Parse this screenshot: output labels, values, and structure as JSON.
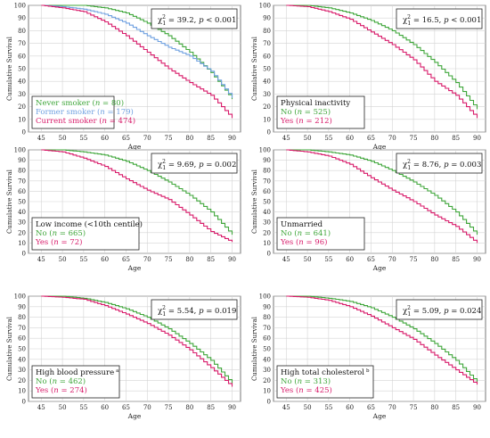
{
  "figure": {
    "background": "#ffffff",
    "grid_color": "#d4d4d4"
  },
  "chart_data": [
    {
      "type": "line",
      "xlabel": "Age",
      "ylabel": "Cumulative Survival",
      "xticks": [
        45,
        50,
        55,
        60,
        65,
        70,
        75,
        80,
        85,
        90
      ],
      "yticks": [
        0,
        10,
        20,
        30,
        40,
        50,
        60,
        70,
        80,
        90,
        100
      ],
      "xlim": [
        42,
        92
      ],
      "ylim": [
        0,
        100
      ],
      "grid": true,
      "legend_position": "bottom-left",
      "stat_position": "top-right",
      "stat": {
        "chi": "χ",
        "sub": "1",
        "sup": "2",
        "value": " = 39.2, ",
        "p": "p",
        "pval": " < 0.001"
      },
      "legend_title": "",
      "series": [
        {
          "label": "Never smoker (",
          "n": "n",
          "count": " = 80)",
          "color": "#3fa63a",
          "x": [
            45,
            55,
            60,
            65,
            70,
            75,
            80,
            85,
            90
          ],
          "values": [
            100,
            100,
            98,
            94,
            86,
            76,
            63,
            47,
            26
          ]
        },
        {
          "label": "Former smoker (",
          "n": "n",
          "count": " = 179)",
          "color": "#6fa0e0",
          "x": [
            45,
            50,
            55,
            60,
            65,
            70,
            75,
            80,
            85,
            90
          ],
          "values": [
            100,
            99,
            97,
            93,
            86,
            76,
            67,
            60,
            48,
            27
          ]
        },
        {
          "label": "Current smoker (",
          "n": "n",
          "count": " = 474)",
          "color": "#d81b6a",
          "x": [
            45,
            50,
            55,
            60,
            65,
            70,
            75,
            80,
            85,
            90
          ],
          "values": [
            100,
            98,
            95,
            87,
            76,
            63,
            50,
            39,
            29,
            11
          ]
        }
      ]
    },
    {
      "type": "line",
      "xlabel": "Age",
      "ylabel": "Cumulative Survival",
      "xticks": [
        45,
        50,
        55,
        60,
        65,
        70,
        75,
        80,
        85,
        90
      ],
      "yticks": [
        0,
        10,
        20,
        30,
        40,
        50,
        60,
        70,
        80,
        90,
        100
      ],
      "xlim": [
        42,
        92
      ],
      "ylim": [
        0,
        100
      ],
      "grid": true,
      "legend_position": "bottom-left",
      "stat_position": "top-right",
      "stat": {
        "chi": "χ",
        "sub": "1",
        "sup": "2",
        "value": " = 16.5, ",
        "p": "p",
        "pval": " < 0.001"
      },
      "legend_title": "Physical inactivity",
      "series": [
        {
          "label": "No (",
          "n": "n",
          "count": " = 525)",
          "color": "#3fa63a",
          "x": [
            45,
            50,
            55,
            60,
            65,
            70,
            75,
            80,
            85,
            90
          ],
          "values": [
            100,
            100,
            98,
            94,
            88,
            80,
            69,
            55,
            39,
            18
          ]
        },
        {
          "label": "Yes (",
          "n": "n",
          "count": " = 212)",
          "color": "#d81b6a",
          "x": [
            45,
            50,
            55,
            60,
            65,
            70,
            75,
            80,
            85,
            90
          ],
          "values": [
            100,
            99,
            95,
            89,
            79,
            69,
            57,
            40,
            29,
            11
          ]
        }
      ]
    },
    {
      "type": "line",
      "xlabel": "Age",
      "ylabel": "Cumulative Survival",
      "xticks": [
        45,
        50,
        55,
        60,
        65,
        70,
        75,
        80,
        85,
        90
      ],
      "yticks": [
        0,
        10,
        20,
        30,
        40,
        50,
        60,
        70,
        80,
        90,
        100
      ],
      "xlim": [
        42,
        92
      ],
      "ylim": [
        0,
        100
      ],
      "grid": true,
      "legend_position": "bottom-left",
      "stat_position": "top-right",
      "stat": {
        "chi": "χ",
        "sub": "1",
        "sup": "2",
        "value": " = 9.69, ",
        "p": "p",
        "pval": " = 0.002"
      },
      "legend_title": "Low income (<10th centile)",
      "series": [
        {
          "label": "No (",
          "n": "n",
          "count": " = 665)",
          "color": "#3fa63a",
          "x": [
            45,
            50,
            55,
            60,
            65,
            70,
            75,
            80,
            85,
            90
          ],
          "values": [
            100,
            100,
            98,
            95,
            89,
            80,
            69,
            56,
            40,
            18
          ]
        },
        {
          "label": "Yes (",
          "n": "n",
          "count": " = 72)",
          "color": "#d81b6a",
          "x": [
            45,
            50,
            55,
            60,
            65,
            70,
            75,
            80,
            85,
            90
          ],
          "values": [
            100,
            98,
            92,
            84,
            72,
            61,
            52,
            37,
            21,
            11
          ]
        }
      ]
    },
    {
      "type": "line",
      "xlabel": "Age",
      "ylabel": "Cumulative Survival",
      "xticks": [
        45,
        50,
        55,
        60,
        65,
        70,
        75,
        80,
        85,
        90
      ],
      "yticks": [
        0,
        10,
        20,
        30,
        40,
        50,
        60,
        70,
        80,
        90,
        100
      ],
      "xlim": [
        42,
        92
      ],
      "ylim": [
        0,
        100
      ],
      "grid": true,
      "legend_position": "bottom-left",
      "stat_position": "top-right",
      "stat": {
        "chi": "χ",
        "sub": "1",
        "sup": "2",
        "value": " = 8.76, ",
        "p": "p",
        "pval": " = 0.003"
      },
      "legend_title": "Unmarried",
      "series": [
        {
          "label": "No (",
          "n": "n",
          "count": " = 641)",
          "color": "#3fa63a",
          "x": [
            45,
            50,
            55,
            60,
            65,
            70,
            75,
            80,
            85,
            90
          ],
          "values": [
            100,
            100,
            98,
            95,
            89,
            80,
            69,
            56,
            40,
            18
          ]
        },
        {
          "label": "Yes (",
          "n": "n",
          "count": " = 96)",
          "color": "#d81b6a",
          "x": [
            45,
            50,
            55,
            60,
            65,
            70,
            75,
            80,
            85,
            90
          ],
          "values": [
            100,
            98,
            94,
            86,
            73,
            61,
            50,
            37,
            26,
            10
          ]
        }
      ]
    },
    {
      "type": "line",
      "xlabel": "Age",
      "ylabel": "Cumulative Survival",
      "xticks": [
        45,
        50,
        55,
        60,
        65,
        70,
        75,
        80,
        85,
        90
      ],
      "yticks": [
        0,
        10,
        20,
        30,
        40,
        50,
        60,
        70,
        80,
        90,
        100
      ],
      "xlim": [
        42,
        92
      ],
      "ylim": [
        0,
        100
      ],
      "grid": true,
      "legend_position": "bottom-left",
      "stat_position": "top-right",
      "stat": {
        "chi": "χ",
        "sub": "1",
        "sup": "2",
        "value": " = 5.54, ",
        "p": "p",
        "pval": " = 0.019"
      },
      "legend_title": "High blood pressure",
      "legend_mark": "a",
      "series": [
        {
          "label": "No (",
          "n": "n",
          "count": " = 462)",
          "color": "#3fa63a",
          "x": [
            45,
            50,
            55,
            60,
            65,
            70,
            75,
            80,
            85,
            90
          ],
          "values": [
            100,
            100,
            98,
            94,
            88,
            80,
            69,
            55,
            39,
            17
          ]
        },
        {
          "label": "Yes (",
          "n": "n",
          "count": " = 274)",
          "color": "#d81b6a",
          "x": [
            45,
            50,
            55,
            60,
            65,
            70,
            75,
            80,
            85,
            90
          ],
          "values": [
            100,
            99,
            97,
            91,
            83,
            74,
            63,
            49,
            32,
            14
          ]
        }
      ]
    },
    {
      "type": "line",
      "xlabel": "Age",
      "ylabel": "Cumulative Survival",
      "xticks": [
        45,
        50,
        55,
        60,
        65,
        70,
        75,
        80,
        85,
        90
      ],
      "yticks": [
        0,
        10,
        20,
        30,
        40,
        50,
        60,
        70,
        80,
        90,
        100
      ],
      "xlim": [
        42,
        92
      ],
      "ylim": [
        0,
        100
      ],
      "grid": true,
      "legend_position": "bottom-left",
      "stat_position": "top-right",
      "stat": {
        "chi": "χ",
        "sub": "1",
        "sup": "2",
        "value": " = 5.09, ",
        "p": "p",
        "pval": " = 0.024"
      },
      "legend_title": "High total cholesterol",
      "legend_mark": "b",
      "series": [
        {
          "label": "No (",
          "n": "n",
          "count": " = 313)",
          "color": "#3fa63a",
          "x": [
            45,
            50,
            55,
            60,
            65,
            70,
            75,
            80,
            85,
            90
          ],
          "values": [
            100,
            100,
            98,
            95,
            89,
            80,
            69,
            55,
            39,
            18
          ]
        },
        {
          "label": "Yes (",
          "n": "n",
          "count": " = 425)",
          "color": "#d81b6a",
          "x": [
            45,
            50,
            55,
            60,
            65,
            70,
            75,
            80,
            85,
            90
          ],
          "values": [
            100,
            99,
            96,
            90,
            81,
            70,
            59,
            44,
            30,
            16
          ]
        }
      ]
    }
  ]
}
